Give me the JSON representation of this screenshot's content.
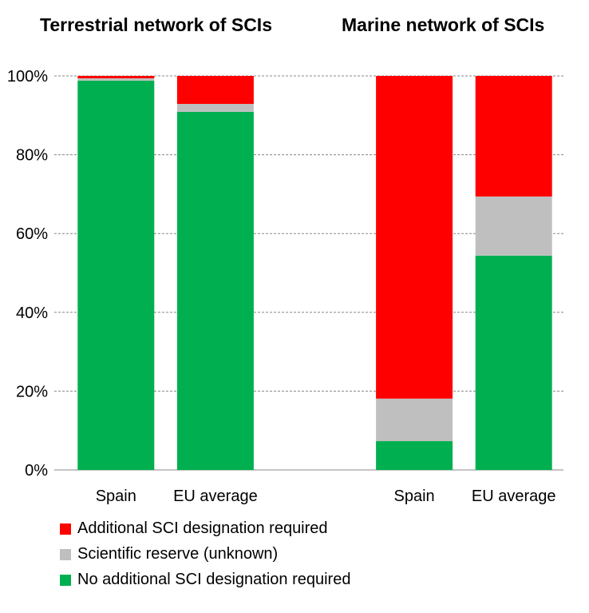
{
  "chart_data": {
    "type": "bar",
    "stacked": true,
    "titles": [
      "Terrestrial network of SCIs",
      "Marine network of SCIs"
    ],
    "groups": [
      {
        "title": "Terrestrial network of SCIs",
        "categories": [
          "Spain",
          "EU average"
        ]
      },
      {
        "title": "Marine network of SCIs",
        "categories": [
          "Spain",
          "EU average"
        ]
      }
    ],
    "categories": [
      "Spain",
      "EU average",
      "",
      "Spain",
      "EU average"
    ],
    "series": [
      {
        "name": "No additional SCI designation required",
        "color": "#00b050",
        "values": [
          98.8,
          90.9,
          null,
          7.3,
          54.4
        ]
      },
      {
        "name": "Scientific reserve (unknown)",
        "color": "#bfbfbf",
        "values": [
          0.6,
          2.0,
          null,
          10.8,
          15.0
        ]
      },
      {
        "name": "Additional SCI designation required",
        "color": "#ff0000",
        "values": [
          0.6,
          7.1,
          null,
          81.9,
          30.6
        ]
      }
    ],
    "yticks": [
      "0%",
      "20%",
      "40%",
      "60%",
      "80%",
      "100%"
    ],
    "ylim": [
      0,
      100
    ],
    "grid": true,
    "legend_position": "bottom",
    "legend": [
      {
        "name": "Additional SCI designation required",
        "color": "#ff0000"
      },
      {
        "name": "Scientific reserve (unknown)",
        "color": "#bfbfbf"
      },
      {
        "name": "No additional SCI designation required",
        "color": "#00b050"
      }
    ]
  }
}
